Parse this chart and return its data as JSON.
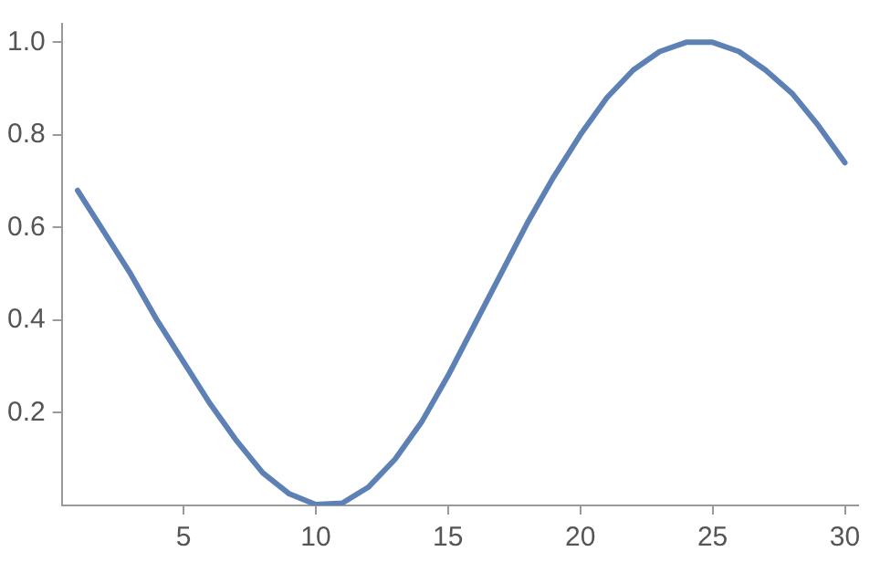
{
  "chart_data": {
    "type": "line",
    "x": [
      1,
      2,
      3,
      4,
      5,
      6,
      7,
      8,
      9,
      10,
      11,
      12,
      13,
      14,
      15,
      16,
      17,
      18,
      19,
      20,
      21,
      22,
      23,
      24,
      25,
      26,
      27,
      28,
      29,
      30
    ],
    "series": [
      {
        "color": "#5e81b5",
        "values": [
          0.68,
          0.59,
          0.5,
          0.4,
          0.31,
          0.22,
          0.14,
          0.07,
          0.025,
          0.002,
          0.005,
          0.04,
          0.1,
          0.18,
          0.28,
          0.39,
          0.5,
          0.61,
          0.71,
          0.8,
          0.88,
          0.94,
          0.98,
          1.0,
          1.0,
          0.98,
          0.94,
          0.89,
          0.82,
          0.74
        ]
      }
    ],
    "xlim": [
      0.4,
      30.5
    ],
    "xticks": [
      5,
      10,
      15,
      20,
      25,
      30
    ],
    "ylim": [
      0,
      1.04
    ],
    "yticks": [
      0.2,
      0.4,
      0.6,
      0.8,
      {
        "value": 1,
        "label": "1.0"
      }
    ],
    "grid": false,
    "legend": false,
    "marker": "none",
    "line_style": "solid"
  }
}
